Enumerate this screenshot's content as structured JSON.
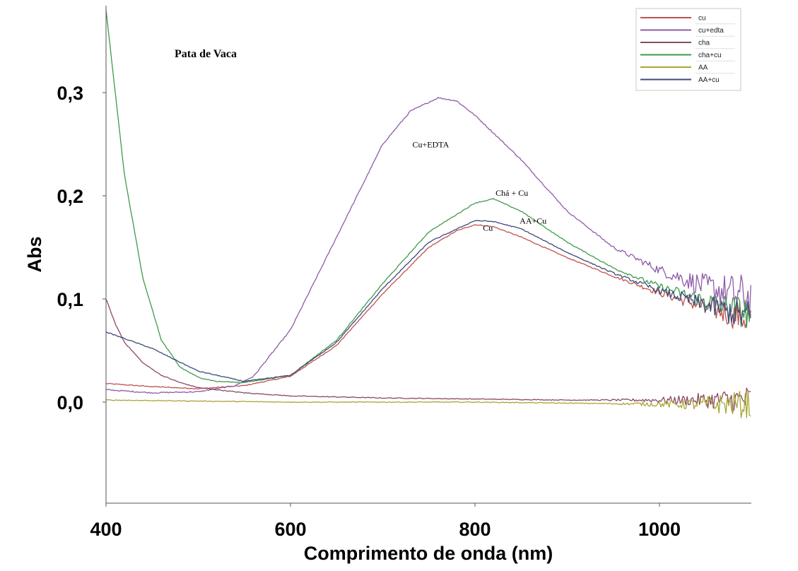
{
  "chart_data": {
    "type": "line",
    "title": "Pata de Vaca",
    "xlabel": "Comprimento de onda (nm)",
    "ylabel": "Abs",
    "xlim": [
      400,
      1100
    ],
    "ylim": [
      -0.1,
      0.38
    ],
    "xticks": [
      400,
      600,
      800,
      1000
    ],
    "xtick_labels": [
      "400",
      "600",
      "800",
      "1000"
    ],
    "yticks": [
      0.0,
      0.1,
      0.2,
      0.3
    ],
    "ytick_labels": [
      "0,0",
      "0,1",
      "0,2",
      "0,3"
    ],
    "grid": false,
    "legend_position": "top-right",
    "series": [
      {
        "name": "cu",
        "color": "#c0504d",
        "label_key": "cu",
        "noise": 0.0035,
        "x": [
          400,
          450,
          500,
          550,
          600,
          650,
          700,
          750,
          780,
          800,
          820,
          850,
          900,
          950,
          1000,
          1050,
          1100
        ],
        "y": [
          0.018,
          0.015,
          0.013,
          0.016,
          0.025,
          0.055,
          0.105,
          0.15,
          0.166,
          0.172,
          0.17,
          0.16,
          0.14,
          0.122,
          0.106,
          0.092,
          0.08
        ]
      },
      {
        "name": "cu+edta",
        "color": "#8e5ba8",
        "label_key": "cuedta",
        "noise": 0.005,
        "x": [
          400,
          450,
          500,
          540,
          560,
          600,
          650,
          700,
          730,
          760,
          780,
          800,
          850,
          900,
          950,
          1000,
          1050,
          1100
        ],
        "y": [
          0.012,
          0.009,
          0.01,
          0.016,
          0.025,
          0.07,
          0.16,
          0.25,
          0.282,
          0.295,
          0.292,
          0.278,
          0.235,
          0.185,
          0.15,
          0.128,
          0.112,
          0.1
        ]
      },
      {
        "name": "cha",
        "color": "#8a4a62",
        "label_key": "cha",
        "noise": 0.003,
        "x": [
          400,
          410,
          420,
          440,
          460,
          480,
          500,
          550,
          600,
          700,
          800,
          900,
          1000,
          1100
        ],
        "y": [
          0.1,
          0.076,
          0.058,
          0.038,
          0.026,
          0.019,
          0.014,
          0.009,
          0.006,
          0.004,
          0.003,
          0.002,
          0.002,
          0.002
        ]
      },
      {
        "name": "cha+cu",
        "color": "#3f9a4a",
        "label_key": "chacu",
        "noise": 0.0035,
        "x": [
          400,
          410,
          420,
          440,
          460,
          480,
          500,
          520,
          550,
          600,
          650,
          700,
          750,
          800,
          820,
          850,
          900,
          950,
          1000,
          1050,
          1100
        ],
        "y": [
          0.38,
          0.3,
          0.22,
          0.12,
          0.06,
          0.034,
          0.024,
          0.02,
          0.019,
          0.026,
          0.06,
          0.115,
          0.165,
          0.193,
          0.197,
          0.185,
          0.155,
          0.13,
          0.112,
          0.098,
          0.085
        ]
      },
      {
        "name": "AA",
        "color": "#a8a638",
        "label_key": "aa",
        "noise": 0.003,
        "x": [
          400,
          500,
          600,
          700,
          800,
          900,
          1000,
          1100
        ],
        "y": [
          0.002,
          0.001,
          0.0,
          0.0,
          0.0,
          -0.001,
          -0.002,
          -0.002
        ]
      },
      {
        "name": "AA+cu",
        "color": "#3f4a78",
        "label_key": "aacu",
        "noise": 0.0035,
        "x": [
          400,
          450,
          500,
          550,
          600,
          650,
          700,
          750,
          800,
          820,
          850,
          900,
          950,
          1000,
          1050,
          1100
        ],
        "y": [
          0.068,
          0.052,
          0.03,
          0.02,
          0.026,
          0.058,
          0.11,
          0.155,
          0.176,
          0.175,
          0.168,
          0.145,
          0.125,
          0.108,
          0.094,
          0.082
        ]
      }
    ],
    "annotations": [
      {
        "text": "Cu+EDTA",
        "x": 752,
        "y": 0.247
      },
      {
        "text": "Chá + Cu",
        "x": 840,
        "y": 0.2
      },
      {
        "text": "AA+Cu",
        "x": 863,
        "y": 0.173
      },
      {
        "text": "Cu",
        "x": 814,
        "y": 0.166
      }
    ]
  }
}
